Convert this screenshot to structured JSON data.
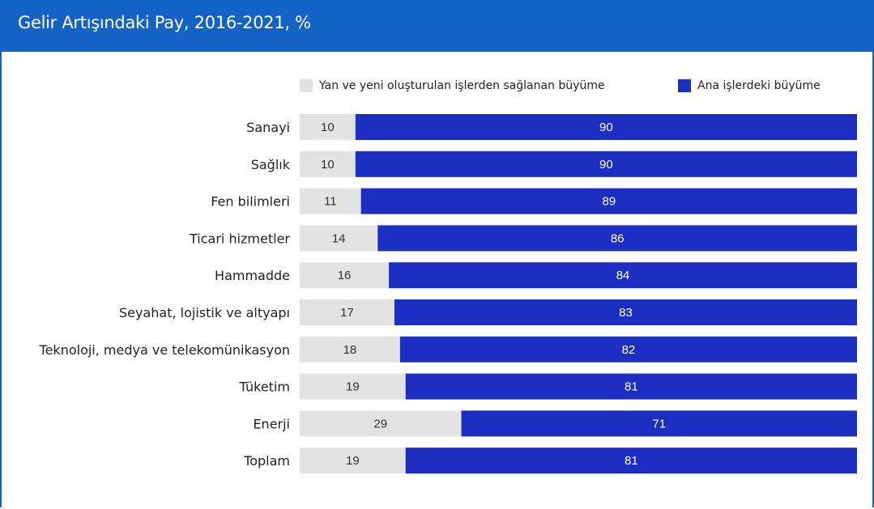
{
  "title": "Gelir Artışındaki Pay, 2016-2021, %",
  "colors": {
    "header": "#1363c6",
    "side_series": "#e3e3e3",
    "core_series": "#1c2ec2"
  },
  "chart_data": {
    "type": "bar",
    "orientation": "horizontal",
    "stacked": true,
    "title": "Gelir Artışındaki Pay, 2016-2021, %",
    "legend_position": "top-right",
    "xlim": [
      0,
      100
    ],
    "categories": [
      "Sanayi",
      "Sağlık",
      "Fen bilimleri",
      "Ticari hizmetler",
      "Hammadde",
      "Seyahat, lojistik ve altyapı",
      "Teknoloji, medya ve telekomünikasyon",
      "Tüketim",
      "Enerji",
      "Toplam"
    ],
    "series": [
      {
        "name": "Yan ve yeni oluşturulan işlerden sağlanan büyüme",
        "values": [
          10,
          10,
          11,
          14,
          16,
          17,
          18,
          19,
          29,
          19
        ]
      },
      {
        "name": "Ana işlerdeki büyüme",
        "values": [
          90,
          90,
          89,
          86,
          84,
          83,
          82,
          81,
          71,
          81
        ]
      }
    ]
  }
}
